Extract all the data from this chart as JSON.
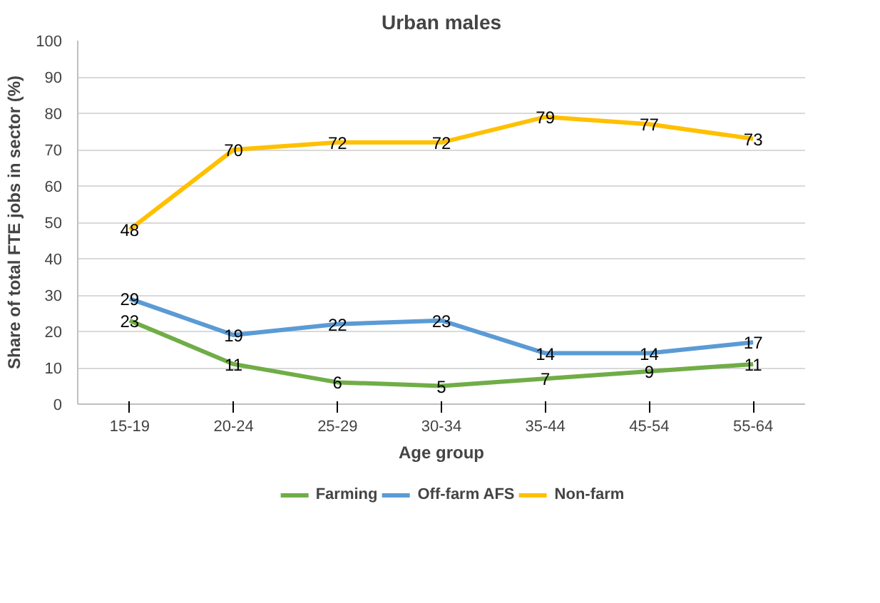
{
  "chart_data": {
    "type": "line",
    "title": "Urban males",
    "xlabel": "Age group",
    "ylabel": "Share of total FTE jobs in sector (%)",
    "categories": [
      "15-19",
      "20-24",
      "25-29",
      "30-34",
      "35-44",
      "45-54",
      "55-64"
    ],
    "series": [
      {
        "name": "Farming",
        "color": "#70ad47",
        "values": [
          23,
          11,
          6,
          5,
          7,
          9,
          11
        ]
      },
      {
        "name": "Off-farm AFS",
        "color": "#5b9bd5",
        "values": [
          29,
          19,
          22,
          23,
          14,
          14,
          17
        ]
      },
      {
        "name": "Non-farm",
        "color": "#ffc000",
        "values": [
          48,
          70,
          72,
          72,
          79,
          77,
          73
        ]
      }
    ],
    "ylim": [
      0,
      100
    ],
    "yticks": [
      0,
      10,
      20,
      30,
      40,
      50,
      60,
      70,
      80,
      90,
      100
    ],
    "grid": "y",
    "legend": "bottom",
    "data_labels": true,
    "marker": "none",
    "line_style": "solid"
  }
}
